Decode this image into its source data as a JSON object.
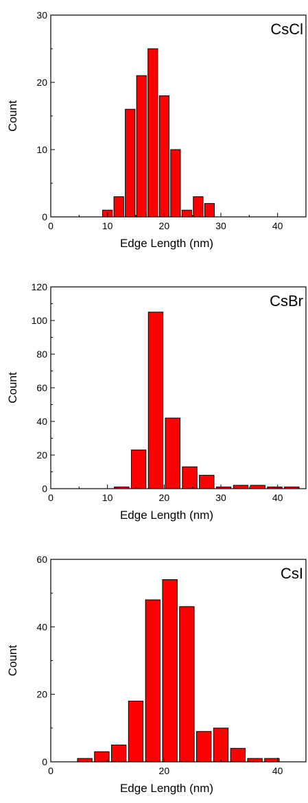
{
  "figure": {
    "bar_color": "#ff0000",
    "edge_color": "#000000"
  },
  "chart_data": [
    {
      "type": "bar",
      "title": "",
      "panel_label": "CsCl",
      "xlabel": "Edge Length (nm)",
      "ylabel": "Count",
      "xlim": [
        0,
        45
      ],
      "ylim": [
        0,
        30
      ],
      "xticks": [
        0,
        10,
        20,
        30,
        40
      ],
      "yticks": [
        0,
        10,
        20,
        30
      ],
      "bin_width": 2,
      "x": [
        10,
        12,
        14,
        16,
        18,
        20,
        22,
        24,
        26,
        28
      ],
      "values": [
        1,
        3,
        16,
        21,
        25,
        18,
        10,
        1,
        3,
        2
      ],
      "legend": "none",
      "grid": false
    },
    {
      "type": "bar",
      "title": "",
      "panel_label": "CsBr",
      "xlabel": "Edge Length (nm)",
      "ylabel": "Count",
      "xlim": [
        0,
        45
      ],
      "ylim": [
        0,
        120
      ],
      "xticks": [
        0,
        10,
        20,
        30,
        40
      ],
      "yticks": [
        0,
        20,
        40,
        60,
        80,
        100,
        120
      ],
      "bin_width": 3,
      "x": [
        12.5,
        15.5,
        18.5,
        21.5,
        24.5,
        27.5,
        30.5,
        33.5,
        36.5,
        39.5,
        42.5
      ],
      "values": [
        1,
        23,
        105,
        42,
        13,
        8,
        1,
        2,
        2,
        1,
        1
      ],
      "legend": "none",
      "grid": false
    },
    {
      "type": "bar",
      "title": "",
      "panel_label": "CsI",
      "xlabel": "Edge Length (nm)",
      "ylabel": "Count",
      "xlim": [
        0,
        45
      ],
      "ylim": [
        0,
        60
      ],
      "xticks": [
        0,
        20,
        40
      ],
      "yticks": [
        0,
        20,
        40,
        60
      ],
      "bin_width": 3,
      "x": [
        6,
        9,
        12,
        15,
        18,
        21,
        24,
        27,
        30,
        33,
        36,
        39
      ],
      "values": [
        1,
        3,
        5,
        18,
        48,
        54,
        46,
        9,
        10,
        4,
        1,
        1
      ],
      "legend": "none",
      "grid": false
    }
  ]
}
